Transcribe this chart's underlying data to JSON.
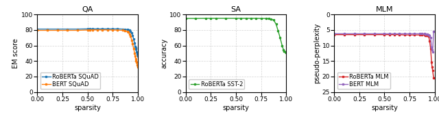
{
  "qa": {
    "title": "QA",
    "xlabel": "sparsity",
    "ylabel": "EM score",
    "ylim": [
      0,
      100
    ],
    "xlim": [
      0.0,
      1.0
    ],
    "roberta_squad": {
      "x": [
        0.0,
        0.1,
        0.2,
        0.3,
        0.4,
        0.5,
        0.525,
        0.55,
        0.6,
        0.65,
        0.7,
        0.75,
        0.8,
        0.85,
        0.875,
        0.9,
        0.91,
        0.92,
        0.93,
        0.94,
        0.95,
        0.96,
        0.97,
        0.975,
        0.98,
        0.985,
        0.99,
        0.995,
        1.0
      ],
      "y": [
        81.2,
        81.2,
        81.2,
        81.2,
        81.2,
        81.5,
        81.5,
        81.5,
        81.5,
        81.5,
        81.5,
        81.5,
        81.5,
        81.2,
        81.0,
        80.5,
        80.2,
        79.5,
        78.0,
        76.0,
        73.0,
        68.0,
        63.0,
        59.0,
        57.0,
        55.0,
        52.0,
        49.0,
        46.0
      ],
      "color": "#1f77b4",
      "marker": "s",
      "label": "RoBERTa SQuAD"
    },
    "bert_squad": {
      "x": [
        0.0,
        0.1,
        0.2,
        0.3,
        0.4,
        0.5,
        0.525,
        0.55,
        0.6,
        0.65,
        0.7,
        0.75,
        0.8,
        0.85,
        0.875,
        0.9,
        0.91,
        0.92,
        0.93,
        0.94,
        0.95,
        0.96,
        0.97,
        0.975,
        0.98,
        0.985,
        0.99,
        0.995,
        1.0
      ],
      "y": [
        79.5,
        79.5,
        79.5,
        79.5,
        79.5,
        80.0,
        80.2,
        80.2,
        80.2,
        80.2,
        80.2,
        80.0,
        79.8,
        79.5,
        79.0,
        78.0,
        77.0,
        75.0,
        72.0,
        67.0,
        62.0,
        56.0,
        50.0,
        46.0,
        43.0,
        40.0,
        38.0,
        35.0,
        32.0
      ],
      "color": "#ff7f0e",
      "marker": "s",
      "label": "BERT SQuAD"
    }
  },
  "sa": {
    "title": "SA",
    "xlabel": "sparsity",
    "ylabel": "accuracy",
    "ylim": [
      0,
      100
    ],
    "xlim": [
      0.0,
      1.0
    ],
    "roberta_sst2": {
      "x": [
        0.0,
        0.1,
        0.2,
        0.25,
        0.3,
        0.4,
        0.5,
        0.55,
        0.6,
        0.65,
        0.7,
        0.75,
        0.8,
        0.825,
        0.85,
        0.875,
        0.9,
        0.92,
        0.94,
        0.96,
        0.975,
        0.98,
        0.99,
        1.0
      ],
      "y": [
        95.0,
        95.0,
        95.2,
        95.2,
        95.2,
        95.2,
        95.2,
        95.2,
        95.2,
        95.2,
        95.2,
        95.0,
        95.0,
        94.8,
        94.0,
        93.0,
        87.5,
        79.0,
        70.0,
        60.0,
        54.0,
        52.5,
        51.5,
        51.0
      ],
      "color": "#2ca02c",
      "marker": "s",
      "label": "RoBERTa SST-2"
    }
  },
  "mlm": {
    "title": "MLM",
    "xlabel": "sparsity",
    "ylabel": "pseudo-perplexity",
    "ylim": [
      25,
      0
    ],
    "xlim": [
      0.0,
      1.0
    ],
    "roberta_mlm": {
      "x": [
        0.0,
        0.1,
        0.2,
        0.3,
        0.4,
        0.5,
        0.55,
        0.6,
        0.65,
        0.7,
        0.75,
        0.8,
        0.85,
        0.875,
        0.9,
        0.91,
        0.92,
        0.93,
        0.94,
        0.95,
        0.96,
        0.97,
        0.975,
        0.98,
        0.99,
        1.0
      ],
      "y": [
        6.5,
        6.5,
        6.5,
        6.5,
        6.5,
        6.5,
        6.5,
        6.5,
        6.5,
        6.6,
        6.6,
        6.6,
        6.6,
        6.6,
        6.6,
        6.7,
        6.7,
        6.8,
        7.0,
        8.5,
        11.0,
        15.5,
        17.0,
        18.0,
        20.5,
        20.5
      ],
      "color": "#d62728",
      "marker": "s",
      "label": "RoBERTa MLM"
    },
    "bert_mlm": {
      "x": [
        0.0,
        0.1,
        0.2,
        0.3,
        0.4,
        0.5,
        0.55,
        0.6,
        0.65,
        0.7,
        0.75,
        0.8,
        0.85,
        0.875,
        0.9,
        0.91,
        0.92,
        0.93,
        0.94,
        0.95,
        0.96,
        0.97,
        0.975,
        0.98,
        0.99,
        1.0
      ],
      "y": [
        6.2,
        6.2,
        6.2,
        6.2,
        6.2,
        6.2,
        6.2,
        6.2,
        6.2,
        6.2,
        6.2,
        6.2,
        6.2,
        6.2,
        6.2,
        6.3,
        6.3,
        6.4,
        6.5,
        6.7,
        7.5,
        10.5,
        11.5,
        12.0,
        5.5,
        5.5
      ],
      "color": "#9467bd",
      "marker": "s",
      "label": "BERT MLM"
    }
  }
}
